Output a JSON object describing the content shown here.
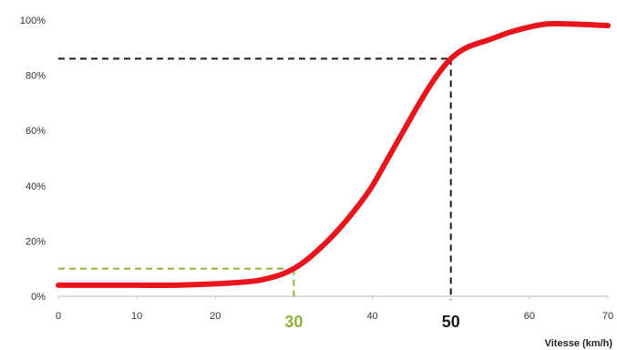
{
  "chart_data": {
    "type": "line",
    "title": "",
    "xlabel": "Vitesse (km/h)",
    "ylabel": "",
    "xlim": [
      0,
      70
    ],
    "ylim": [
      0,
      100
    ],
    "x_ticks": [
      "0",
      "10",
      "20",
      "30",
      "40",
      "50",
      "60",
      "70"
    ],
    "x_tick_values": [
      0,
      10,
      20,
      30,
      40,
      50,
      60,
      70
    ],
    "y_ticks": [
      "0%",
      "20%",
      "40%",
      "60%",
      "80%",
      "100%"
    ],
    "y_tick_values": [
      0,
      20,
      40,
      60,
      80,
      100
    ],
    "grid": false,
    "series": [
      {
        "color": "#e8161c",
        "x": [
          0,
          5,
          10,
          15,
          20,
          25,
          28,
          30,
          32,
          35,
          38,
          40,
          42,
          44,
          46,
          48,
          50,
          52,
          55,
          58,
          62,
          66,
          70
        ],
        "y": [
          4,
          4,
          4,
          4,
          4.5,
          5.5,
          7.5,
          10,
          14,
          22,
          32,
          40,
          50,
          60,
          70,
          79,
          86,
          90,
          93,
          96,
          98.5,
          98.5,
          98
        ]
      }
    ],
    "annotations": [
      {
        "label": "30",
        "x": 30,
        "y": 10,
        "color": "#8db33a"
      },
      {
        "label": "50",
        "x": 50,
        "y": 86,
        "color": "#1a1a1a"
      }
    ]
  }
}
